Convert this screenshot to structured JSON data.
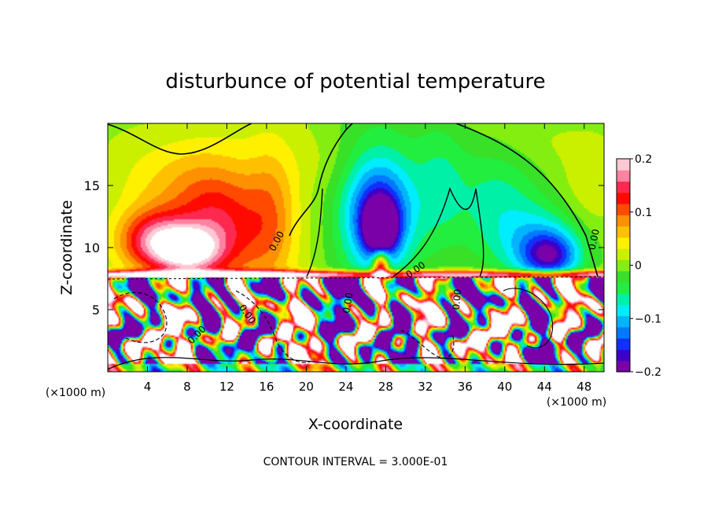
{
  "chart_data": {
    "type": "heatmap",
    "title": "disturbunce of potential temperature",
    "xlabel": "X-coordinate",
    "ylabel": "Z-coordinate",
    "x_unit_left": "(×1000 m)",
    "x_unit_right": "(×1000 m)",
    "xlim": [
      0,
      50
    ],
    "ylim": [
      0,
      20
    ],
    "x_ticks": [
      4,
      8,
      12,
      16,
      20,
      24,
      28,
      32,
      36,
      40,
      44,
      48
    ],
    "y_ticks": [
      5,
      10,
      15
    ],
    "colorbar": {
      "min": -0.2,
      "max": 0.2,
      "tick_values": [
        0.2,
        0.1,
        0,
        -0.1,
        -0.2
      ],
      "tick_labels": [
        "0.2",
        "0.1",
        "0",
        "−0.1",
        "−0.2"
      ],
      "colors": [
        "#7a00a8",
        "#3c00c8",
        "#1030ff",
        "#0078ff",
        "#00b4ff",
        "#00ecff",
        "#00f0a8",
        "#22ee40",
        "#38e028",
        "#84ee10",
        "#caf000",
        "#fff000",
        "#ffc000",
        "#ff9000",
        "#ff4a00",
        "#ff0a00",
        "#ff2850",
        "#ff82a0",
        "#ffc8d4"
      ]
    },
    "contour_labels": [
      {
        "text": "0.00",
        "x": 17.3,
        "z": 10.4,
        "angle": -62
      },
      {
        "text": "0.00",
        "x": 49.3,
        "z": 10.6,
        "angle": -78
      },
      {
        "text": "0.00",
        "x": 9.2,
        "z": 2.8,
        "angle": -45
      },
      {
        "text": "0.00",
        "x": 13.8,
        "z": 4.5,
        "angle": 55
      },
      {
        "text": "0.00",
        "x": 24.5,
        "z": 5.5,
        "angle": -80
      },
      {
        "text": "0.00",
        "x": 31.2,
        "z": 8.0,
        "angle": -35
      },
      {
        "text": "0.00",
        "x": 35.5,
        "z": 5.8,
        "angle": -85
      }
    ],
    "blobs": [
      {
        "x": 4.5,
        "z": 10.5,
        "value": 0.14,
        "rx": 3.5,
        "rz": 2.5
      },
      {
        "x": 8.0,
        "z": 9.8,
        "value": 0.16,
        "rx": 3.0,
        "rz": 1.8
      },
      {
        "x": 11.0,
        "z": 11.5,
        "value": 0.09,
        "rx": 4.5,
        "rz": 4.5
      },
      {
        "x": 12.0,
        "z": 12.5,
        "value": 0.045,
        "rx": 8.5,
        "rz": 6.5
      },
      {
        "x": 16.5,
        "z": 13.0,
        "value": 0.05,
        "rx": 2.5,
        "rz": 5.5
      },
      {
        "x": 7.0,
        "z": 15.5,
        "value": 0.018,
        "rx": 7.0,
        "rz": 3.0
      },
      {
        "x": 21.5,
        "z": 17.0,
        "value": 0.015,
        "rx": 4.0,
        "rz": 3.0
      },
      {
        "x": 27.5,
        "z": 11.5,
        "value": -0.175,
        "rx": 1.6,
        "rz": 2.0
      },
      {
        "x": 27.3,
        "z": 12.8,
        "value": -0.12,
        "rx": 3.2,
        "rz": 4.0
      },
      {
        "x": 27.0,
        "z": 13.5,
        "value": -0.07,
        "rx": 5.5,
        "rz": 7.0
      },
      {
        "x": 27.5,
        "z": 8.5,
        "value": 0.22,
        "rx": 0.8,
        "rz": 1.2
      },
      {
        "x": 33.5,
        "z": 15.5,
        "value": -0.035,
        "rx": 2.5,
        "rz": 6.0
      },
      {
        "x": 39.5,
        "z": 13.0,
        "value": -0.06,
        "rx": 5.0,
        "rz": 6.0
      },
      {
        "x": 44.5,
        "z": 9.3,
        "value": -0.12,
        "rx": 2.8,
        "rz": 1.8
      },
      {
        "x": 44.0,
        "z": 10.5,
        "value": -0.07,
        "rx": 4.5,
        "rz": 3.0
      },
      {
        "x": 48.5,
        "z": 14.0,
        "value": 0.02,
        "rx": 2.5,
        "rz": 4.0
      },
      {
        "x": 42.0,
        "z": 18.5,
        "value": 0.015,
        "rx": 5.0,
        "rz": 2.0
      }
    ]
  },
  "footer": {
    "contour_interval": "CONTOUR INTERVAL = 3.000E-01"
  }
}
